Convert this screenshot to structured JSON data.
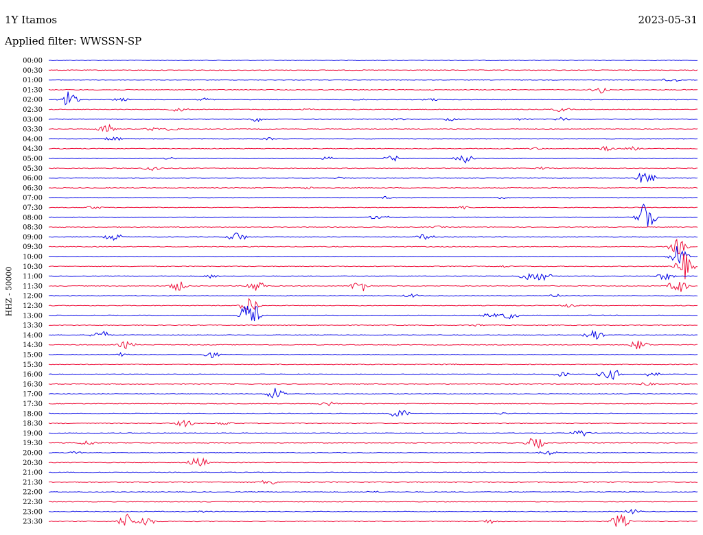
{
  "header": {
    "station": "1Y Itamos",
    "date": "2023-05-31",
    "filter": "Applied filter: WWSSN-SP"
  },
  "chart_data": {
    "type": "line",
    "title": "1Y Itamos",
    "ylabel": "HHZ - 50000",
    "colors": [
      "#0000e6",
      "#ee0e3a"
    ],
    "rows": [
      {
        "label": "00:00",
        "events": []
      },
      {
        "label": "00:30",
        "events": []
      },
      {
        "label": "01:00",
        "events": [
          [
            0.96,
            4
          ]
        ]
      },
      {
        "label": "01:30",
        "events": [
          [
            0.85,
            6
          ]
        ]
      },
      {
        "label": "02:00",
        "events": [
          [
            0.03,
            14
          ],
          [
            0.11,
            3
          ],
          [
            0.24,
            3
          ],
          [
            0.48,
            1.5
          ],
          [
            0.59,
            2.5
          ]
        ]
      },
      {
        "label": "02:30",
        "events": [
          [
            0.2,
            4
          ],
          [
            0.4,
            1.5
          ],
          [
            0.79,
            4
          ]
        ]
      },
      {
        "label": "03:00",
        "events": [
          [
            0.32,
            4
          ],
          [
            0.54,
            2
          ],
          [
            0.62,
            3
          ],
          [
            0.73,
            2
          ],
          [
            0.79,
            3
          ]
        ]
      },
      {
        "label": "03:30",
        "events": [
          [
            0.09,
            8
          ],
          [
            0.16,
            3
          ],
          [
            0.19,
            3
          ]
        ]
      },
      {
        "label": "04:00",
        "events": [
          [
            0.1,
            4
          ],
          [
            0.34,
            2
          ]
        ]
      },
      {
        "label": "04:30",
        "events": [
          [
            0.75,
            2
          ],
          [
            0.86,
            4
          ],
          [
            0.9,
            3
          ]
        ]
      },
      {
        "label": "05:00",
        "events": [
          [
            0.19,
            2
          ],
          [
            0.43,
            3
          ],
          [
            0.53,
            5
          ],
          [
            0.64,
            10
          ]
        ]
      },
      {
        "label": "05:30",
        "events": [
          [
            0.16,
            5
          ],
          [
            0.76,
            2
          ]
        ]
      },
      {
        "label": "06:00",
        "events": [
          [
            0.45,
            2
          ],
          [
            0.92,
            12
          ]
        ]
      },
      {
        "label": "06:30",
        "events": [
          [
            0.4,
            2
          ]
        ]
      },
      {
        "label": "07:00",
        "events": [
          [
            0.52,
            2
          ],
          [
            0.7,
            2
          ]
        ]
      },
      {
        "label": "07:30",
        "events": [
          [
            0.07,
            3
          ],
          [
            0.64,
            3
          ]
        ]
      },
      {
        "label": "08:00",
        "events": [
          [
            0.51,
            5
          ],
          [
            0.92,
            30
          ]
        ]
      },
      {
        "label": "08:30",
        "events": [
          [
            0.6,
            2
          ]
        ]
      },
      {
        "label": "09:00",
        "events": [
          [
            0.1,
            6
          ],
          [
            0.29,
            8
          ],
          [
            0.58,
            5
          ]
        ]
      },
      {
        "label": "09:30",
        "events": [
          [
            0.97,
            12
          ]
        ]
      },
      {
        "label": "10:00",
        "events": [
          [
            0.97,
            18
          ]
        ]
      },
      {
        "label": "10:30",
        "events": [
          [
            0.7,
            2
          ],
          [
            0.98,
            20
          ]
        ]
      },
      {
        "label": "11:00",
        "events": [
          [
            0.25,
            3
          ],
          [
            0.74,
            8
          ],
          [
            0.76,
            8
          ],
          [
            0.95,
            6
          ]
        ]
      },
      {
        "label": "11:30",
        "events": [
          [
            0.2,
            8
          ],
          [
            0.32,
            10
          ],
          [
            0.48,
            10
          ],
          [
            0.97,
            12
          ]
        ]
      },
      {
        "label": "12:00",
        "events": [
          [
            0.56,
            3
          ],
          [
            0.78,
            3
          ]
        ]
      },
      {
        "label": "12:30",
        "events": [
          [
            0.31,
            14
          ],
          [
            0.8,
            3
          ]
        ]
      },
      {
        "label": "13:00",
        "events": [
          [
            0.31,
            28
          ],
          [
            0.68,
            4
          ],
          [
            0.71,
            6
          ]
        ]
      },
      {
        "label": "13:30",
        "events": [
          [
            0.66,
            2
          ]
        ]
      },
      {
        "label": "14:00",
        "events": [
          [
            0.08,
            8
          ],
          [
            0.84,
            10
          ]
        ]
      },
      {
        "label": "14:30",
        "events": [
          [
            0.12,
            6
          ],
          [
            0.91,
            8
          ]
        ]
      },
      {
        "label": "15:00",
        "events": [
          [
            0.11,
            3
          ],
          [
            0.25,
            5
          ]
        ]
      },
      {
        "label": "15:30",
        "events": [
          [
            0.62,
            2
          ]
        ]
      },
      {
        "label": "16:00",
        "events": [
          [
            0.79,
            4
          ],
          [
            0.86,
            6
          ],
          [
            0.87,
            8
          ],
          [
            0.93,
            4
          ]
        ]
      },
      {
        "label": "16:30",
        "events": [
          [
            0.92,
            3
          ]
        ]
      },
      {
        "label": "17:00",
        "events": [
          [
            0.35,
            10
          ]
        ]
      },
      {
        "label": "17:30",
        "events": [
          [
            0.43,
            4
          ]
        ]
      },
      {
        "label": "18:00",
        "events": [
          [
            0.54,
            8
          ],
          [
            0.7,
            2
          ]
        ]
      },
      {
        "label": "18:30",
        "events": [
          [
            0.21,
            6
          ],
          [
            0.27,
            3
          ]
        ]
      },
      {
        "label": "19:00",
        "events": [
          [
            0.82,
            6
          ]
        ]
      },
      {
        "label": "19:30",
        "events": [
          [
            0.06,
            4
          ],
          [
            0.75,
            10
          ]
        ]
      },
      {
        "label": "20:00",
        "events": [
          [
            0.04,
            2
          ],
          [
            0.77,
            4
          ]
        ]
      },
      {
        "label": "20:30",
        "events": [
          [
            0.23,
            10
          ]
        ]
      },
      {
        "label": "21:00",
        "events": []
      },
      {
        "label": "21:30",
        "events": [
          [
            0.34,
            5
          ]
        ]
      },
      {
        "label": "22:00",
        "events": [
          [
            0.5,
            2
          ]
        ]
      },
      {
        "label": "22:30",
        "events": []
      },
      {
        "label": "23:00",
        "events": [
          [
            0.24,
            2
          ],
          [
            0.9,
            4
          ]
        ]
      },
      {
        "label": "23:30",
        "events": [
          [
            0.12,
            12
          ],
          [
            0.15,
            8
          ],
          [
            0.68,
            4
          ],
          [
            0.88,
            12
          ]
        ]
      }
    ]
  }
}
